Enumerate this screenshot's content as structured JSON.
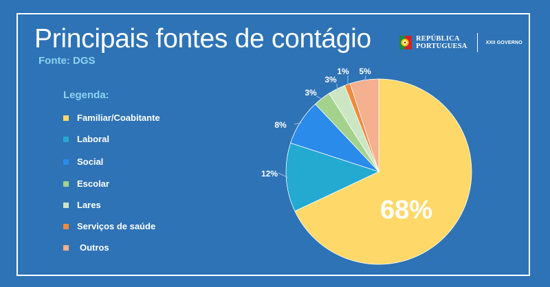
{
  "title": "Principais fontes de contágio",
  "subtitle": "Fonte: DGS",
  "legend_title": "Legenda:",
  "logo": {
    "name_line1": "REPÚBLICA",
    "name_line2": "PORTUGUESA",
    "government": "XXII GOVERNO"
  },
  "colors": {
    "background": "#2e73b5",
    "legend_title": "#8fd3f0"
  },
  "chart_data": {
    "type": "pie",
    "title": "Principais fontes de contágio",
    "start_angle_deg": 0,
    "direction": "clockwise",
    "slices": [
      {
        "name": "Familiar/Coabitante",
        "value": 68,
        "label": "68%",
        "color": "#fed96a"
      },
      {
        "name": "Laboral",
        "value": 12,
        "label": "12%",
        "color": "#24a9d0"
      },
      {
        "name": "Social",
        "value": 8,
        "label": "8%",
        "color": "#2a8bea"
      },
      {
        "name": "Escolar",
        "value": 3,
        "label": "3%",
        "color": "#a4d28c"
      },
      {
        "name": "Lares",
        "value": 3,
        "label": "3%",
        "color": "#cce6c4"
      },
      {
        "name": "Serviços de saúde",
        "value": 1,
        "label": "1%",
        "color": "#f08a3c"
      },
      {
        "name": "Outros",
        "value": 5,
        "label": "5%",
        "color": "#f5b08f"
      }
    ]
  }
}
